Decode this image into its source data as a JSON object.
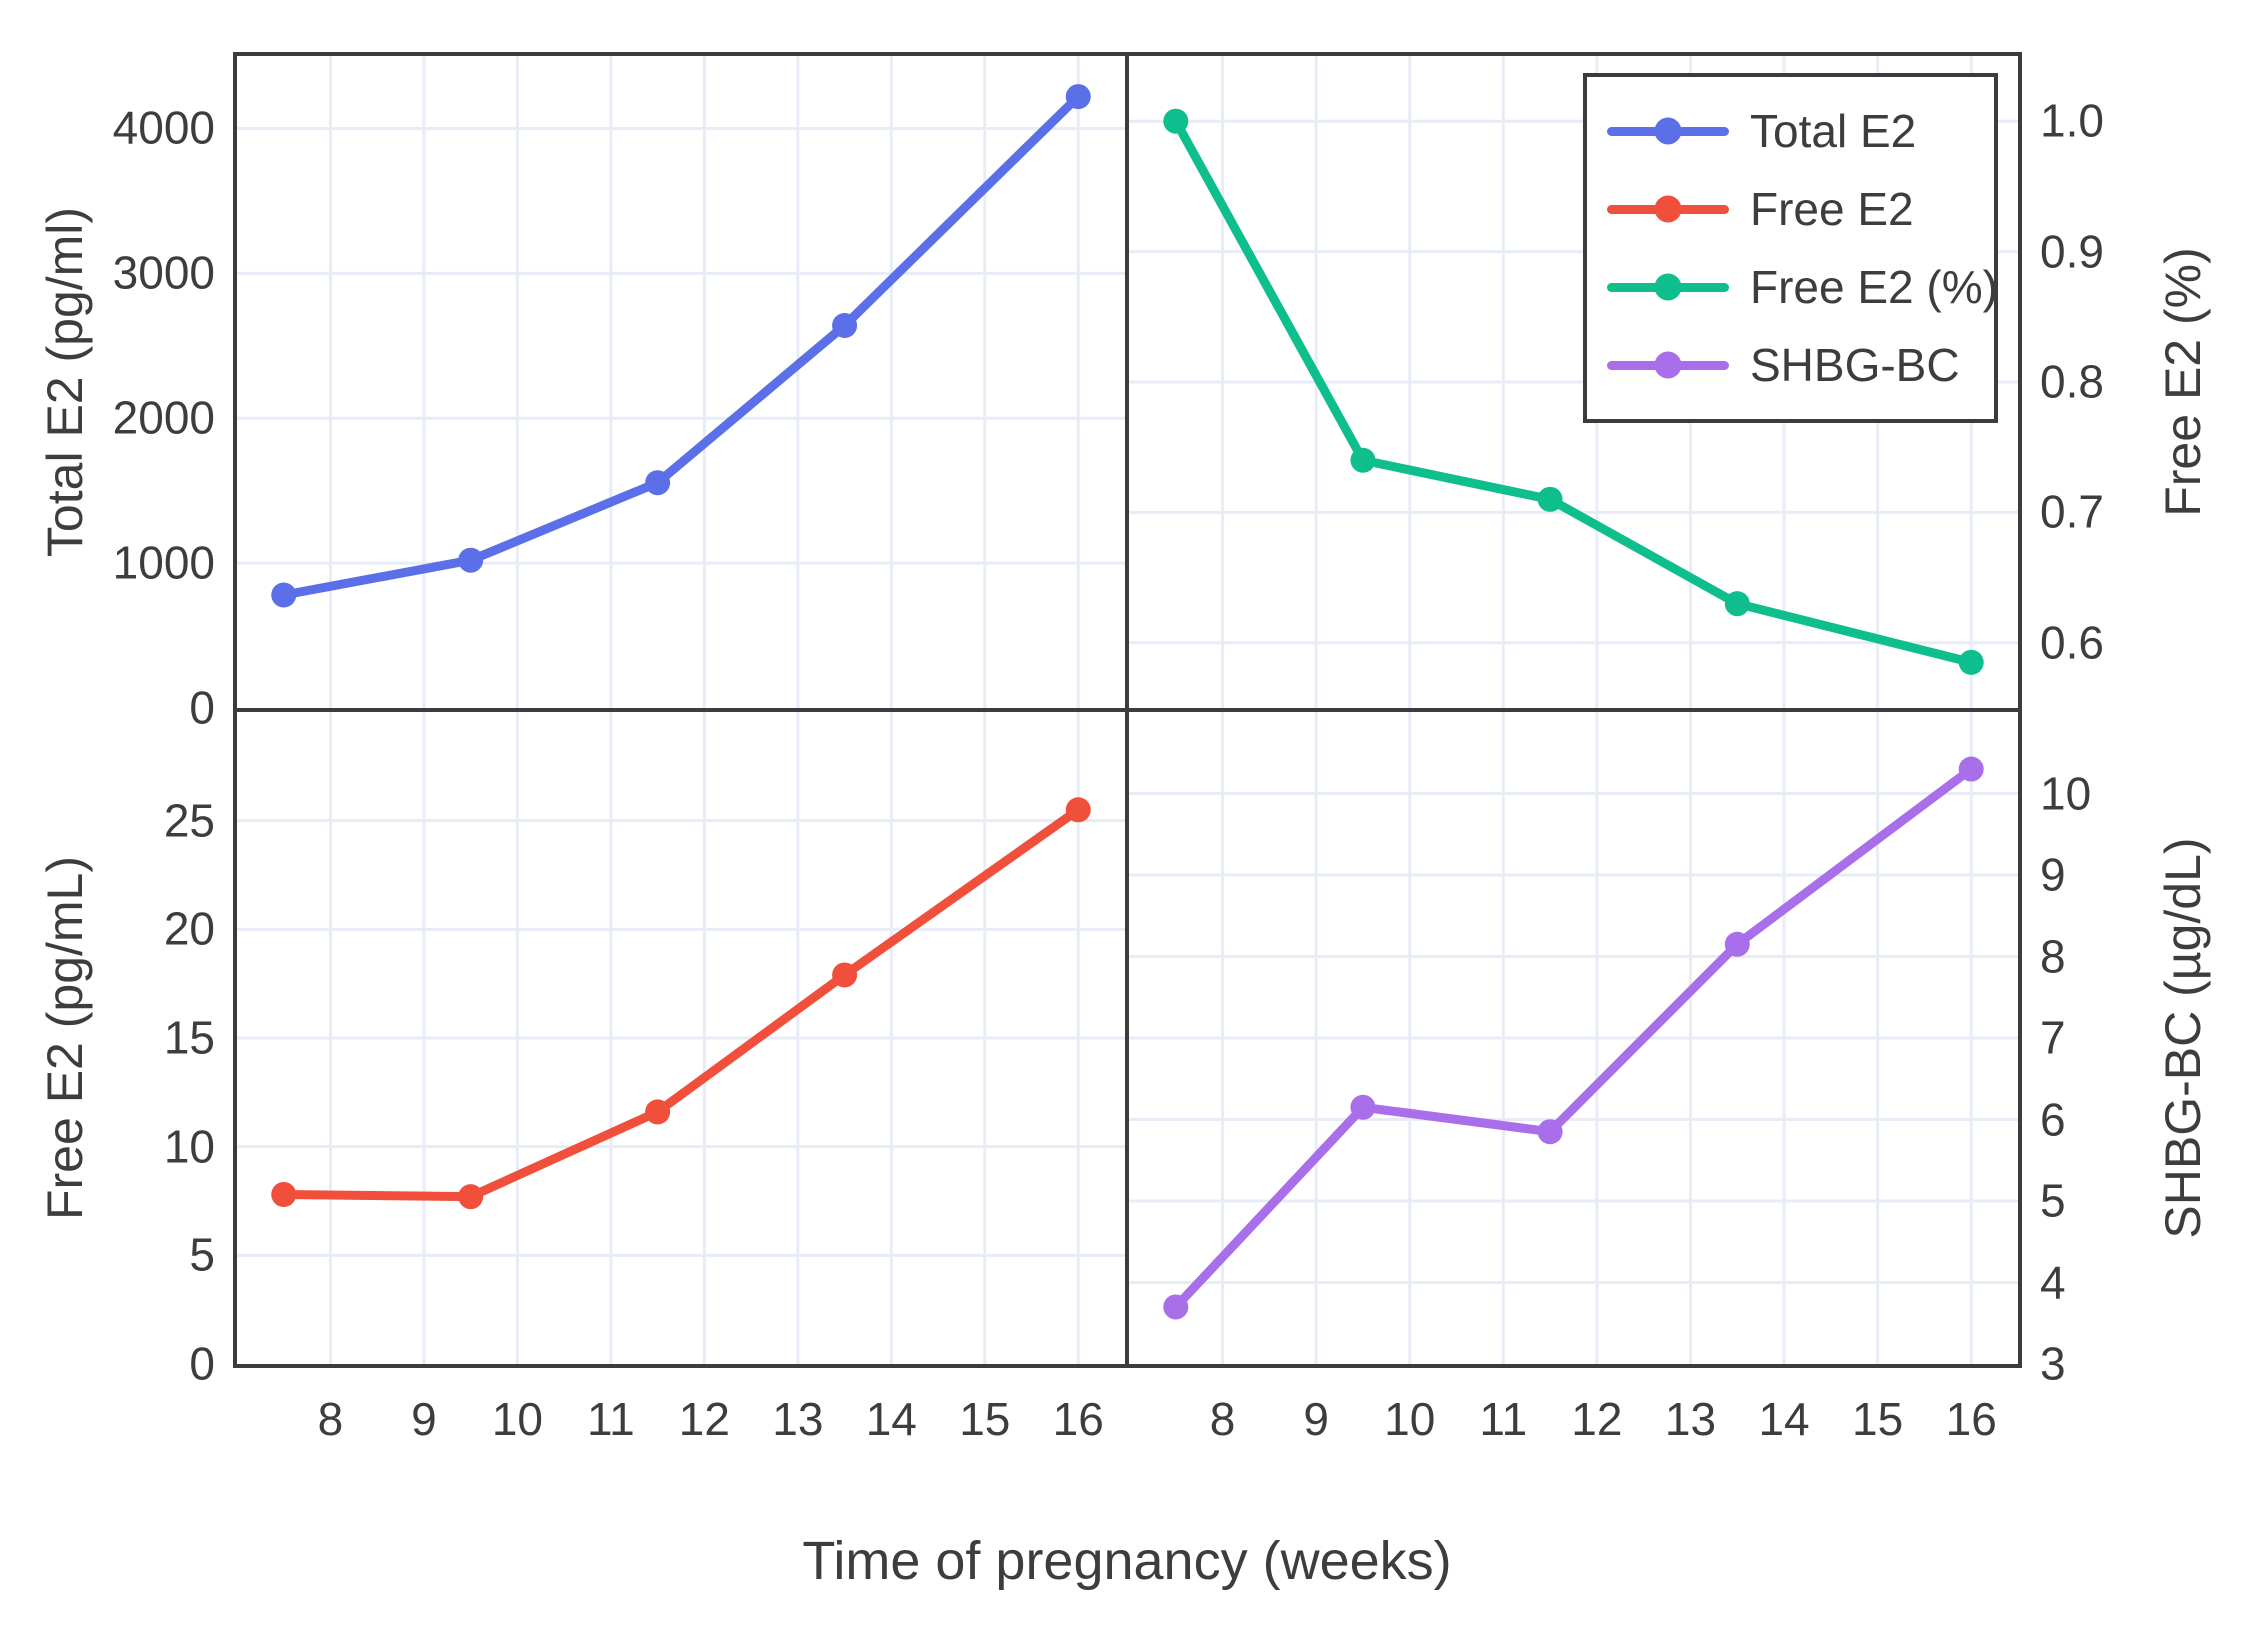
{
  "figure": {
    "xlabel": "Time of pregnancy (weeks)",
    "xticks": [
      8,
      9,
      10,
      11,
      12,
      13,
      14,
      15,
      16
    ],
    "x_tick_labels": [
      "8",
      "9",
      "10",
      "11",
      "12",
      "13",
      "14",
      "15",
      "16"
    ],
    "background_color": "#ffffff",
    "grid_color": "#e7ecf7",
    "border_color": "#3c3c3c",
    "text_color": "#3d3d3d"
  },
  "legend": {
    "items": [
      {
        "label": "Total E2",
        "color": "#5b6fe8"
      },
      {
        "label": "Free E2",
        "color": "#ef4f3b"
      },
      {
        "label": "Free E2 (%)",
        "color": "#0fbe8d"
      },
      {
        "label": "SHBG-BC",
        "color": "#a96fea"
      }
    ]
  },
  "chart_data": [
    {
      "type": "line",
      "name": "Total E2",
      "position": "top-left",
      "ylabel": "Total E2 (pg/ml)",
      "axis_side": "left",
      "x": [
        7.5,
        9.5,
        11.5,
        13.5,
        16
      ],
      "values": [
        780,
        1020,
        1555,
        2640,
        4220
      ],
      "color": "#5b6fe8",
      "xlim": [
        7.0,
        16.5
      ],
      "ylim": [
        0,
        4500
      ],
      "yticks": [
        0,
        1000,
        2000,
        3000,
        4000
      ],
      "ytick_labels": [
        "0",
        "1000",
        "2000",
        "3000",
        "4000"
      ],
      "show_xtick_labels": false,
      "grid": true
    },
    {
      "type": "line",
      "name": "Free E2 (%)",
      "position": "top-right",
      "ylabel": "Free E2 (%)",
      "axis_side": "right",
      "x": [
        7.5,
        9.5,
        11.5,
        13.5,
        16
      ],
      "values": [
        1.0,
        0.74,
        0.71,
        0.63,
        0.585
      ],
      "color": "#0fbe8d",
      "xlim": [
        7.0,
        16.5
      ],
      "ylim": [
        0.55,
        1.05
      ],
      "yticks": [
        0.6,
        0.7,
        0.8,
        0.9,
        1.0
      ],
      "ytick_labels": [
        "0.6",
        "0.7",
        "0.8",
        "0.9",
        "1.0"
      ],
      "show_xtick_labels": false,
      "grid": true
    },
    {
      "type": "line",
      "name": "Free E2",
      "position": "bottom-left",
      "ylabel": "Free E2 (pg/mL)",
      "axis_side": "left",
      "x": [
        7.5,
        9.5,
        11.5,
        13.5,
        16
      ],
      "values": [
        7.8,
        7.7,
        11.6,
        17.9,
        25.5
      ],
      "color": "#ef4f3b",
      "xlim": [
        7.0,
        16.5
      ],
      "ylim": [
        0,
        30
      ],
      "yticks": [
        0,
        5,
        10,
        15,
        20,
        25
      ],
      "ytick_labels": [
        "0",
        "5",
        "10",
        "15",
        "20",
        "25"
      ],
      "show_xtick_labels": true,
      "grid": true
    },
    {
      "type": "line",
      "name": "SHBG-BC",
      "position": "bottom-right",
      "ylabel": "SHBG-BC (µg/dL)",
      "axis_side": "right",
      "x": [
        7.5,
        9.5,
        11.5,
        13.5,
        16
      ],
      "values": [
        3.7,
        6.15,
        5.85,
        8.15,
        10.3
      ],
      "color": "#a96fea",
      "xlim": [
        7.0,
        16.5
      ],
      "ylim": [
        3,
        11
      ],
      "yticks": [
        3,
        4,
        5,
        6,
        7,
        8,
        9,
        10
      ],
      "ytick_labels": [
        "3",
        "4",
        "5",
        "6",
        "7",
        "8",
        "9",
        "10"
      ],
      "show_xtick_labels": true,
      "grid": true
    }
  ]
}
